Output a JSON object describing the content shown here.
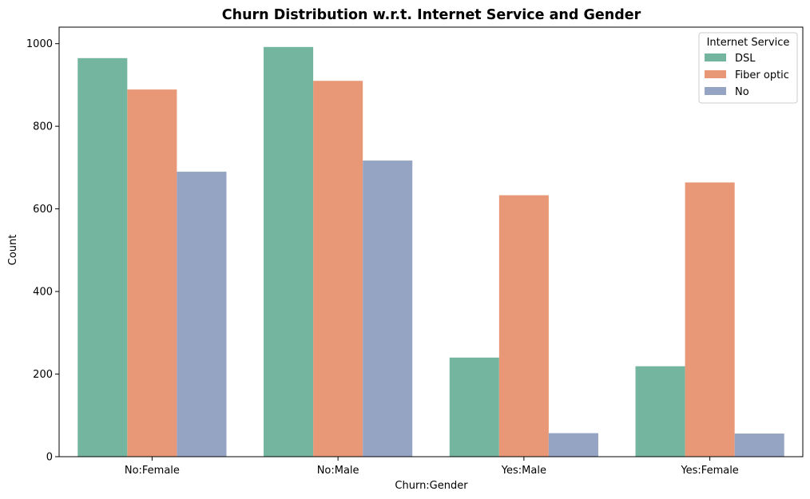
{
  "chart_data": {
    "type": "bar",
    "title": "Churn Distribution w.r.t. Internet Service and Gender",
    "xlabel": "Churn:Gender",
    "ylabel": "Count",
    "categories": [
      "No:Female",
      "No:Male",
      "Yes:Male",
      "Yes:Female"
    ],
    "series": [
      {
        "name": "DSL",
        "color": "#73b59f",
        "values": [
          965,
          992,
          240,
          219
        ]
      },
      {
        "name": "Fiber optic",
        "color": "#e99877",
        "values": [
          889,
          910,
          633,
          664
        ]
      },
      {
        "name": "No",
        "color": "#96a4c3",
        "values": [
          690,
          717,
          57,
          56
        ]
      }
    ],
    "ylim": [
      0,
      1040
    ],
    "yticks": [
      0,
      200,
      400,
      600,
      800,
      1000
    ],
    "grid": false,
    "legend": {
      "title": "Internet Service",
      "position": "top-right"
    }
  }
}
